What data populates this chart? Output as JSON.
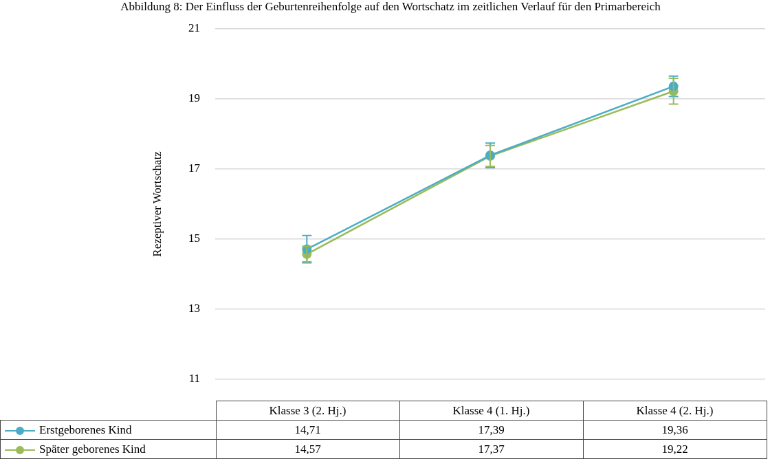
{
  "chart_data": {
    "type": "line",
    "title": "Abbildung 8: Der Einfluss der Geburtenreihenfolge auf den Wortschatz im zeitlichen Verlauf für den Primarbereich",
    "ylabel": "Rezeptiver Wortschatz",
    "categories": [
      "Klasse 3 (2. Hj.)",
      "Klasse 4 (1. Hj.)",
      "Klasse 4 (2. Hj.)"
    ],
    "series": [
      {
        "name": "Erstgeborenes Kind",
        "color": "#4bacc6",
        "values": [
          14.71,
          17.39,
          19.36
        ],
        "value_labels": [
          "14,71",
          "17,39",
          "19,36"
        ],
        "errors": [
          0.39,
          0.35,
          0.29
        ]
      },
      {
        "name": "Später geborenes Kind",
        "color": "#9bbb59",
        "values": [
          14.57,
          17.37,
          19.22
        ],
        "value_labels": [
          "14,57",
          "17,37",
          "19,22"
        ],
        "errors": [
          0.22,
          0.3,
          0.37
        ]
      }
    ],
    "ylim": [
      11,
      21
    ],
    "yticks": [
      11,
      13,
      15,
      17,
      19,
      21
    ],
    "grid": "y",
    "marker": "circle",
    "legend": "bottom"
  }
}
